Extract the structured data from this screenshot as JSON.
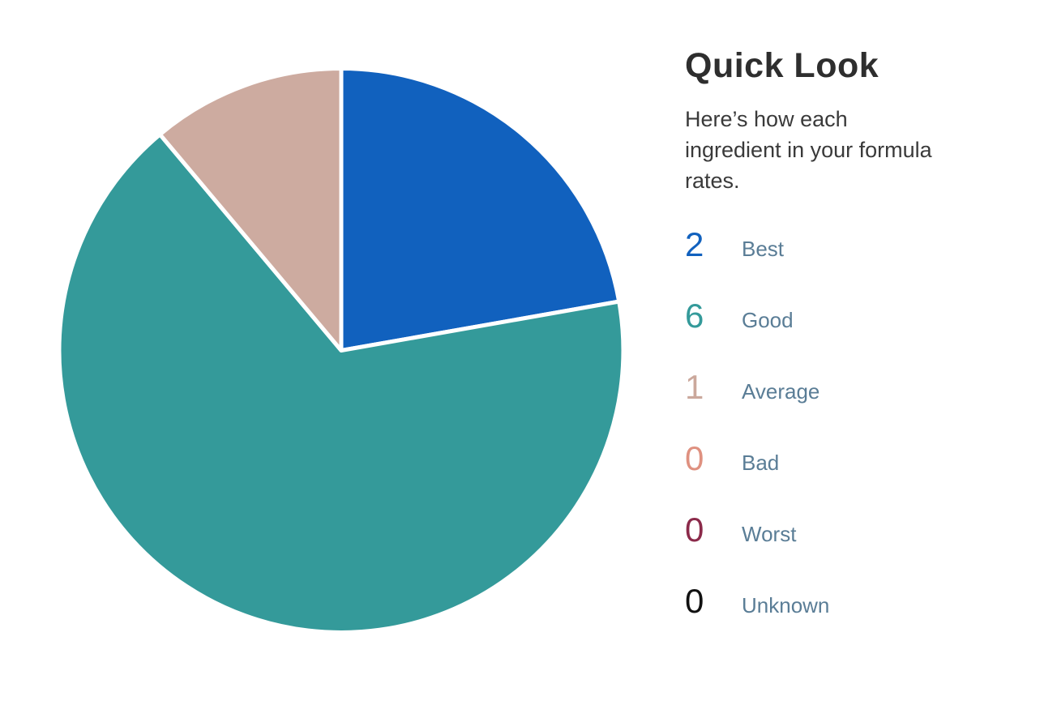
{
  "panel": {
    "title": "Quick Look",
    "subtitle": "Here’s how each ingredient in your formula rates.",
    "subtitle_lines": [
      "Here’s how each",
      "ingredient in your formula",
      "rates."
    ],
    "items": [
      {
        "count": "2",
        "label": "Best",
        "color": "#1161BE"
      },
      {
        "count": "6",
        "label": "Good",
        "color": "#349A9A"
      },
      {
        "count": "1",
        "label": "Average",
        "color": "#CBA89C"
      },
      {
        "count": "0",
        "label": "Bad",
        "color": "#DF9180"
      },
      {
        "count": "0",
        "label": "Worst",
        "color": "#8B2A4A"
      },
      {
        "count": "0",
        "label": "Unknown",
        "color": "#111111"
      }
    ]
  },
  "chart_data": {
    "type": "pie",
    "title": "Quick Look",
    "subtitle": "Here’s how each ingredient in your formula rates.",
    "total": 9,
    "start_angle_deg": 0,
    "direction": "clockwise",
    "slice_gap_color": "#ffffff",
    "slices": [
      {
        "label": "Best",
        "value": 2,
        "angle_deg": 80,
        "color": "#1161BE"
      },
      {
        "label": "Good",
        "value": 6,
        "angle_deg": 240,
        "color": "#349A9A"
      },
      {
        "label": "Average",
        "value": 1,
        "angle_deg": 40,
        "color": "#CDABA0"
      }
    ],
    "legend": [
      {
        "count": 2,
        "label": "Best"
      },
      {
        "count": 6,
        "label": "Good"
      },
      {
        "count": 1,
        "label": "Average"
      },
      {
        "count": 0,
        "label": "Bad"
      },
      {
        "count": 0,
        "label": "Worst"
      },
      {
        "count": 0,
        "label": "Unknown"
      }
    ],
    "legend_position": "right"
  }
}
